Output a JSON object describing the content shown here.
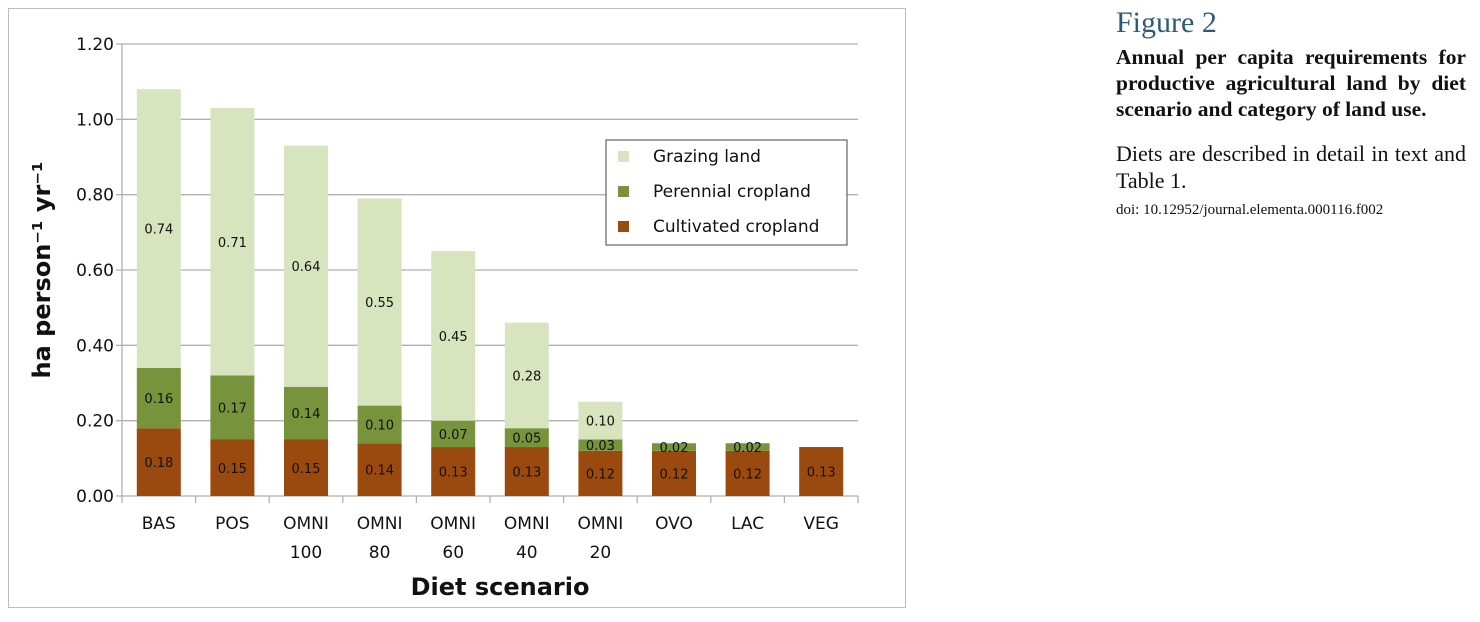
{
  "chart_data": {
    "type": "bar",
    "stacked": true,
    "categories": [
      [
        "BAS"
      ],
      [
        "POS"
      ],
      [
        "OMNI",
        "100"
      ],
      [
        "OMNI",
        "80"
      ],
      [
        "OMNI",
        "60"
      ],
      [
        "OMNI",
        "40"
      ],
      [
        "OMNI",
        "20"
      ],
      [
        "OVO"
      ],
      [
        "LAC"
      ],
      [
        "VEG"
      ]
    ],
    "series": [
      {
        "name": "Cultivated cropland",
        "color": "#9a4a0e",
        "values": [
          0.18,
          0.15,
          0.15,
          0.14,
          0.13,
          0.13,
          0.12,
          0.12,
          0.12,
          0.13
        ]
      },
      {
        "name": "Perennial cropland",
        "color": "#77933c",
        "values": [
          0.16,
          0.17,
          0.14,
          0.1,
          0.07,
          0.05,
          0.03,
          0.02,
          0.02,
          null
        ]
      },
      {
        "name": "Grazing land",
        "color": "#d7e4bd",
        "values": [
          0.74,
          0.71,
          0.64,
          0.55,
          0.45,
          0.28,
          0.1,
          null,
          null,
          null
        ]
      }
    ],
    "xlabel": "Diet scenario",
    "ylabel": "ha person⁻¹ yr⁻¹",
    "ylim": [
      0,
      1.2
    ],
    "yticks": [
      "0.00",
      "0.20",
      "0.40",
      "0.60",
      "0.80",
      "1.00",
      "1.20"
    ],
    "grid": true,
    "legend": "upper-right",
    "data_labels": true
  },
  "caption": {
    "figure_number": "Figure 2",
    "title": "Annual per capita requirements for productive agricultural land by diet scenario and category of land use.",
    "description": "Diets are described in detail in text and Table 1.",
    "doi": "doi: 10.12952/journal.elementa.000116.f002"
  }
}
